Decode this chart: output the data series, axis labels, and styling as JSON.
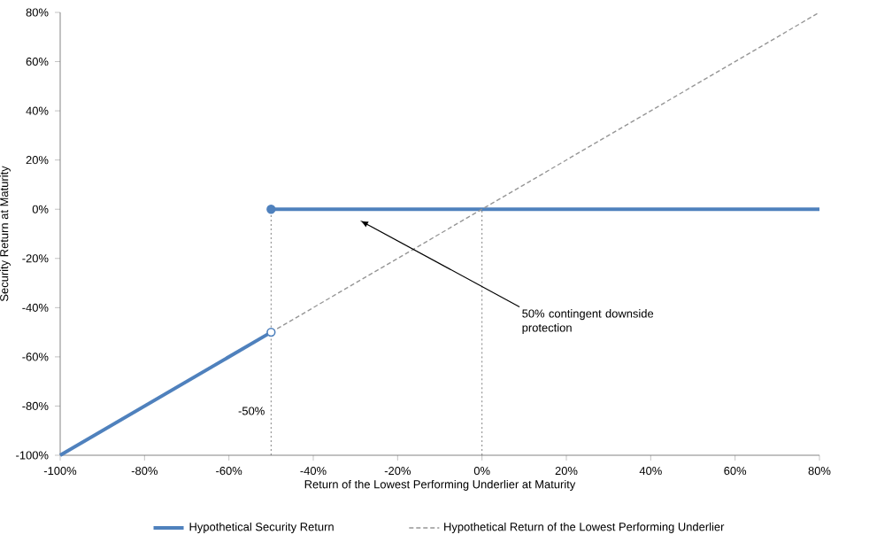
{
  "chart_data": {
    "type": "line",
    "xlabel": "Return of the Lowest Performing Underlier at Maturity",
    "ylabel": "Security Return at Maturity",
    "xlim": [
      -100,
      80
    ],
    "ylim": [
      -100,
      80
    ],
    "xticks": [
      {
        "value": -100,
        "label": "-100%"
      },
      {
        "value": -80,
        "label": "-80%"
      },
      {
        "value": -60,
        "label": "-60%"
      },
      {
        "value": -40,
        "label": "-40%"
      },
      {
        "value": -20,
        "label": "-20%"
      },
      {
        "value": 0,
        "label": "0%"
      },
      {
        "value": 20,
        "label": "20%"
      },
      {
        "value": 40,
        "label": "40%"
      },
      {
        "value": 60,
        "label": "60%"
      },
      {
        "value": 80,
        "label": "80%"
      }
    ],
    "yticks": [
      {
        "value": -100,
        "label": "-100%"
      },
      {
        "value": -80,
        "label": "-80%"
      },
      {
        "value": -60,
        "label": "-60%"
      },
      {
        "value": -40,
        "label": "-40%"
      },
      {
        "value": -20,
        "label": "-20%"
      },
      {
        "value": 0,
        "label": "0%"
      },
      {
        "value": 20,
        "label": "20%"
      },
      {
        "value": 40,
        "label": "40%"
      },
      {
        "value": 60,
        "label": "60%"
      },
      {
        "value": 80,
        "label": "80%"
      }
    ],
    "series": [
      {
        "name": "Hypothetical Security Return",
        "color": "#4f81bd",
        "line_style": "solid",
        "marker": "none",
        "x": [
          -50,
          80
        ],
        "values": [
          0,
          0
        ]
      },
      {
        "name": "Hypothetical Return of the Lowest Performing Underlier",
        "color": "#969696",
        "line_style": "dashed",
        "marker": "none",
        "x": [
          -50,
          80
        ],
        "values": [
          -50,
          80
        ]
      },
      {
        "color": "#4f81bd",
        "line_style": "solid",
        "marker": "none",
        "x": [
          -100,
          -50
        ],
        "values": [
          -100,
          -50
        ]
      },
      {
        "type": "scatter",
        "color": "#4f81bd",
        "marker": "circle",
        "x": [
          -50
        ],
        "values": [
          0
        ]
      },
      {
        "type": "scatter",
        "color": "#ffffff",
        "marker": "circle",
        "x": [
          -50
        ],
        "values": [
          -50
        ]
      }
    ],
    "ref_lines": [
      {
        "axis": "x",
        "value": -50,
        "label": "-50%",
        "color": "#808080",
        "line_style": "dotted"
      },
      {
        "axis": "x",
        "value": 0,
        "color": "#808080",
        "line_style": "dotted"
      }
    ],
    "annotations": [
      "50% contingent downside protection"
    ],
    "grid": false,
    "legend": "bottom"
  }
}
